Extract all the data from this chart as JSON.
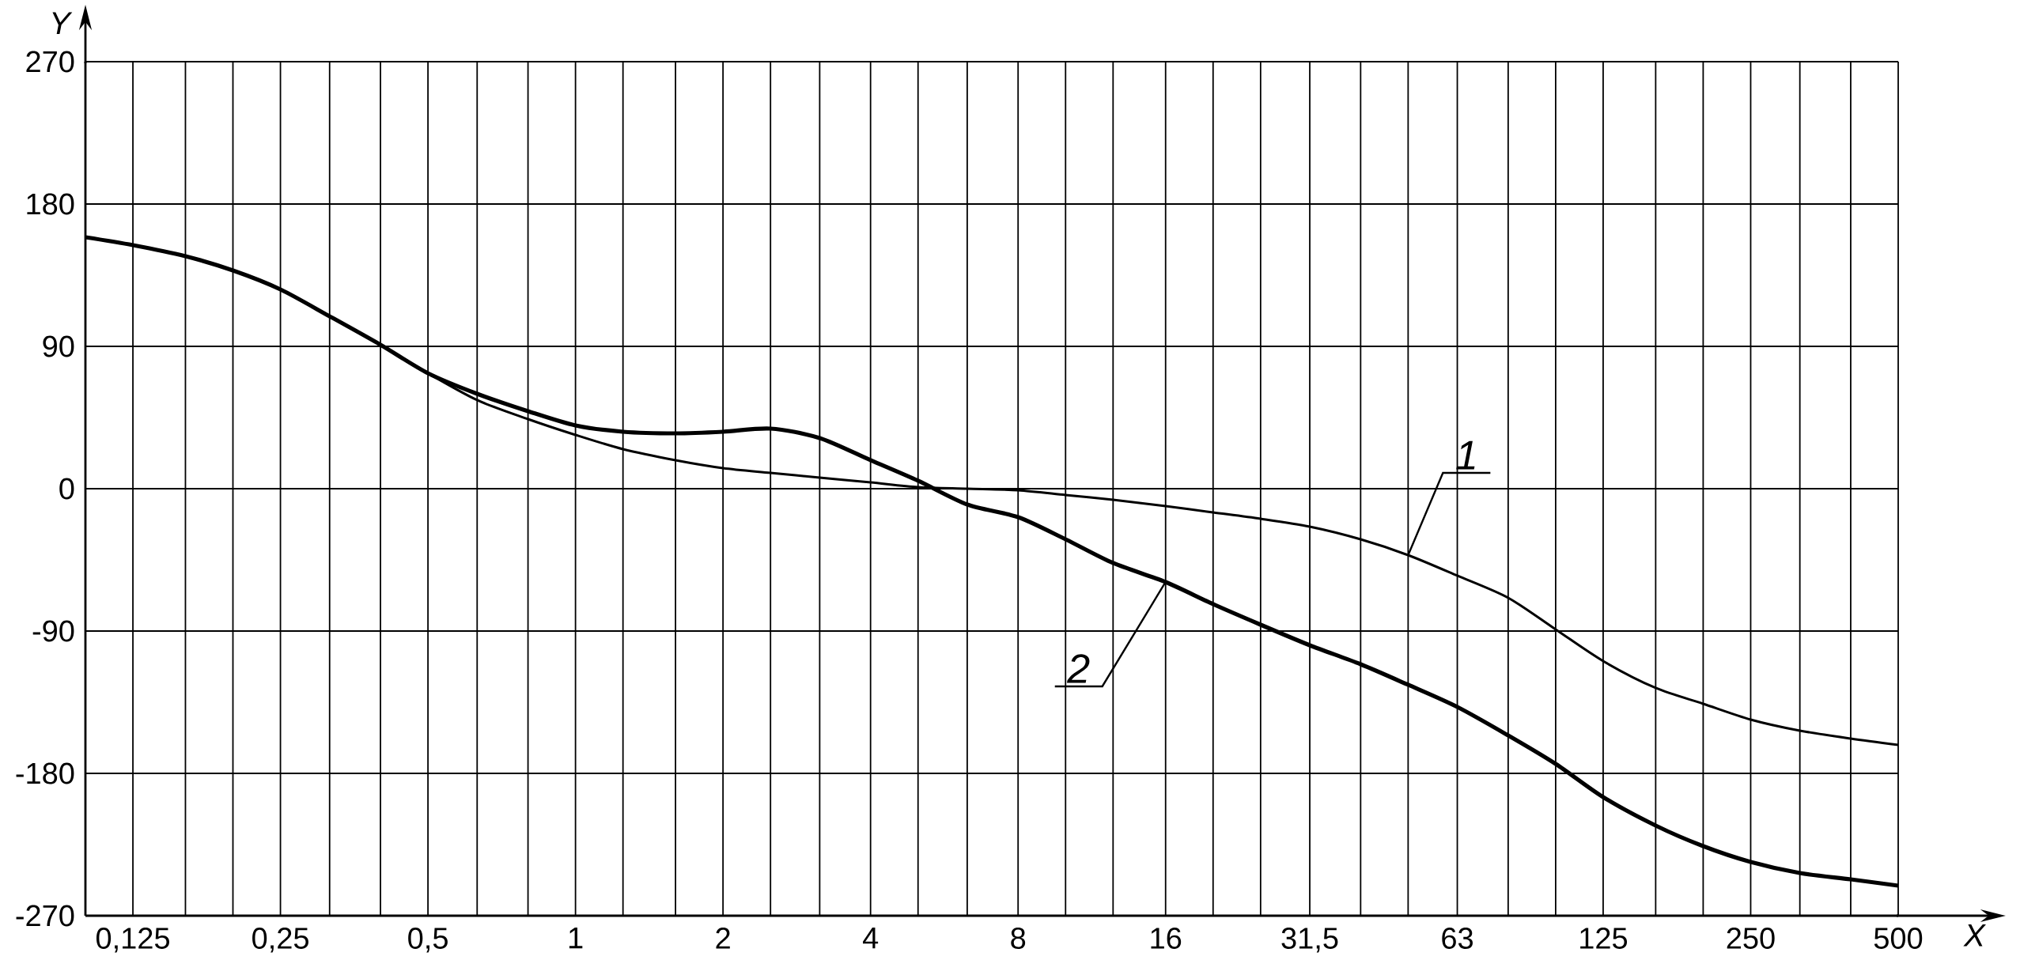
{
  "chart_data": {
    "type": "line",
    "xlabel": "X",
    "ylabel": "Y",
    "log": "x",
    "grid": true,
    "legend": false,
    "marker": "none",
    "line_style": "solid",
    "xlim": [
      0.1,
      500
    ],
    "ylim": [
      -270,
      270
    ],
    "yticks": [
      -270,
      -180,
      -90,
      0,
      90,
      180,
      270
    ],
    "xticks": [
      {
        "value": 0.125,
        "label": "0,125"
      },
      {
        "value": 0.16,
        "label": null
      },
      {
        "value": 0.2,
        "label": null
      },
      {
        "value": 0.25,
        "label": "0,25"
      },
      {
        "value": 0.315,
        "label": null
      },
      {
        "value": 0.4,
        "label": null
      },
      {
        "value": 0.5,
        "label": "0,5"
      },
      {
        "value": 0.63,
        "label": null
      },
      {
        "value": 0.8,
        "label": null
      },
      {
        "value": 1,
        "label": "1"
      },
      {
        "value": 1.25,
        "label": null
      },
      {
        "value": 1.6,
        "label": null
      },
      {
        "value": 2,
        "label": "2"
      },
      {
        "value": 2.5,
        "label": null
      },
      {
        "value": 3.15,
        "label": null
      },
      {
        "value": 4,
        "label": "4"
      },
      {
        "value": 5,
        "label": null
      },
      {
        "value": 6.3,
        "label": null
      },
      {
        "value": 8,
        "label": "8"
      },
      {
        "value": 10,
        "label": null
      },
      {
        "value": 12.5,
        "label": null
      },
      {
        "value": 16,
        "label": "16"
      },
      {
        "value": 20,
        "label": null
      },
      {
        "value": 25,
        "label": null
      },
      {
        "value": 31.5,
        "label": "31,5"
      },
      {
        "value": 40,
        "label": null
      },
      {
        "value": 50,
        "label": null
      },
      {
        "value": 63,
        "label": "63"
      },
      {
        "value": 80,
        "label": null
      },
      {
        "value": 100,
        "label": null
      },
      {
        "value": 125,
        "label": "125"
      },
      {
        "value": 160,
        "label": null
      },
      {
        "value": 200,
        "label": null
      },
      {
        "value": 250,
        "label": "250"
      },
      {
        "value": 315,
        "label": null
      },
      {
        "value": 400,
        "label": null
      },
      {
        "value": 500,
        "label": "500"
      }
    ],
    "x": [
      0.1,
      0.125,
      0.16,
      0.2,
      0.25,
      0.315,
      0.4,
      0.5,
      0.63,
      0.8,
      1,
      1.25,
      1.6,
      2,
      2.5,
      3.15,
      4,
      5,
      6.3,
      8,
      10,
      12.5,
      16,
      20,
      25,
      31.5,
      40,
      50,
      63,
      80,
      100,
      125,
      160,
      200,
      250,
      315,
      400,
      500
    ],
    "series": [
      {
        "name": "1",
        "color": "#000000",
        "values": [
          159,
          154,
          147,
          138,
          126,
          109,
          91,
          73,
          56,
          44,
          34,
          25,
          18,
          13,
          10,
          7,
          4,
          1,
          0,
          -1,
          -4,
          -7,
          -11,
          -15,
          -19,
          -24,
          -32,
          -42,
          -55,
          -69,
          -89,
          -109,
          -126,
          -136,
          -146,
          -153,
          -158,
          -162
        ]
      },
      {
        "name": "2",
        "color": "#000000",
        "values": [
          159,
          154,
          147,
          138,
          126,
          109,
          91,
          73,
          60,
          49,
          40,
          36,
          35,
          36,
          38,
          32,
          18,
          5,
          -10,
          -18,
          -32,
          -47,
          -59,
          -73,
          -86,
          -99,
          -111,
          -124,
          -138,
          -156,
          -174,
          -195,
          -213,
          -226,
          -236,
          -243,
          -247,
          -251
        ]
      }
    ]
  }
}
